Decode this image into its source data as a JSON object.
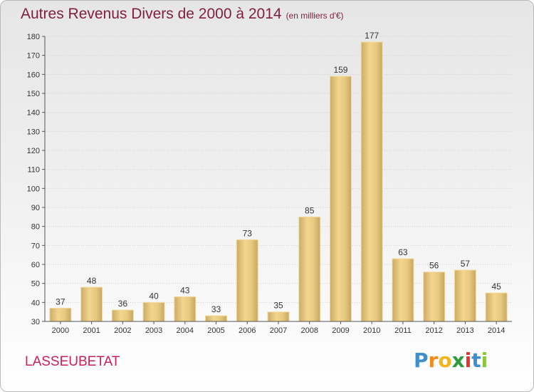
{
  "chart_data": {
    "type": "bar",
    "title": "Autres Revenus Divers de 2000 à 2014",
    "subtitle": "(en milliers d'€)",
    "categories": [
      "2000",
      "2001",
      "2002",
      "2003",
      "2004",
      "2005",
      "2006",
      "2007",
      "2008",
      "2009",
      "2010",
      "2011",
      "2012",
      "2013",
      "2014"
    ],
    "values": [
      37,
      48,
      36,
      40,
      43,
      33,
      73,
      35,
      85,
      159,
      177,
      63,
      56,
      57,
      45
    ],
    "ylim": [
      30,
      180
    ],
    "yticks": [
      "30",
      "40",
      "50",
      "60",
      "70",
      "80",
      "90",
      "100",
      "110",
      "120",
      "130",
      "140",
      "150",
      "160",
      "170",
      "180"
    ],
    "xlabel": "",
    "ylabel": "",
    "grid": true,
    "bar_color": "#e3c57f"
  },
  "commune": "LASSEUBETAT",
  "brand": {
    "letters": [
      "P",
      "r",
      "o",
      "x",
      "i",
      "t",
      "i"
    ],
    "colors": [
      "#3f8fcf",
      "#f08a1c",
      "#f2b61c",
      "#2e9b3c",
      "#e2332c",
      "#3f8fcf",
      "#8cc63f"
    ]
  }
}
